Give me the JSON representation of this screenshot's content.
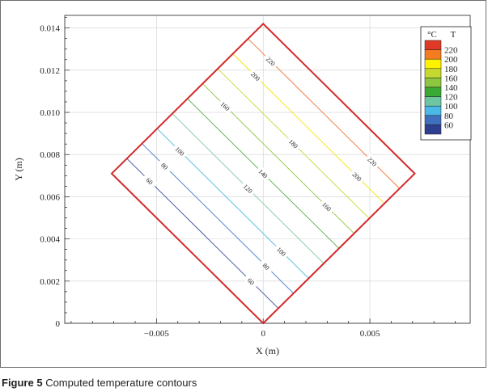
{
  "caption": {
    "label": "Figure 5",
    "text": " Computed temperature contours"
  },
  "chart_data": {
    "type": "contour",
    "xlabel": "X (m)",
    "ylabel": "Y (m)",
    "xlim": [
      -0.0093,
      0.0097
    ],
    "ylim": [
      0,
      0.0146
    ],
    "x_ticks": [
      -0.005,
      0,
      0.005
    ],
    "x_tick_labels": [
      "−0.005",
      "0",
      "0.005"
    ],
    "y_ticks": [
      0,
      0.002,
      0.004,
      0.006,
      0.008,
      0.01,
      0.012,
      0.014
    ],
    "y_tick_labels": [
      "0",
      "0.002",
      "0.004",
      "0.006",
      "0.008",
      "0.010",
      "0.012",
      "0.014"
    ],
    "grid": true,
    "domain_square": [
      [
        0,
        0
      ],
      [
        0.0071,
        0.0071
      ],
      [
        0,
        0.0142
      ],
      [
        -0.0071,
        0.0071
      ]
    ],
    "domain_color": "#d42a2a",
    "contours": [
      {
        "level": 60,
        "color": "#3a4fa0",
        "labels": [
          "60",
          "60"
        ]
      },
      {
        "level": 80,
        "color": "#3f7ac9",
        "labels": [
          "80",
          "80"
        ]
      },
      {
        "level": 100,
        "color": "#4cb8dc",
        "labels": [
          "100",
          "100"
        ]
      },
      {
        "level": 120,
        "color": "#7fc8a0",
        "labels": [
          "120"
        ]
      },
      {
        "level": 140,
        "color": "#5aad4e",
        "labels": [
          "140"
        ]
      },
      {
        "level": 160,
        "color": "#8ec63f",
        "labels": [
          "160",
          "160"
        ]
      },
      {
        "level": 180,
        "color": "#c8d832",
        "labels": [
          "180"
        ]
      },
      {
        "level": 200,
        "color": "#f2e600",
        "labels": [
          "200",
          "200"
        ]
      },
      {
        "level": 220,
        "color": "#f0783c",
        "labels": [
          "220",
          "220"
        ]
      }
    ],
    "legend": {
      "position": "top-right",
      "unit": "°C",
      "title": "T",
      "entries": [
        {
          "label": "220",
          "color": "#e03a27"
        },
        {
          "label": "200",
          "color": "#f47b20"
        },
        {
          "label": "180",
          "color": "#fff200"
        },
        {
          "label": "160",
          "color": "#c4d82e"
        },
        {
          "label": "140",
          "color": "#8dc63f"
        },
        {
          "label": "120",
          "color": "#3aaa35"
        },
        {
          "label": "100",
          "color": "#6cc7a0"
        },
        {
          "label": "80",
          "color": "#4ab9e6"
        },
        {
          "label": "60",
          "color": "#3f6fbf"
        },
        {
          "label": "",
          "color": "#2e3f8f"
        }
      ]
    }
  }
}
